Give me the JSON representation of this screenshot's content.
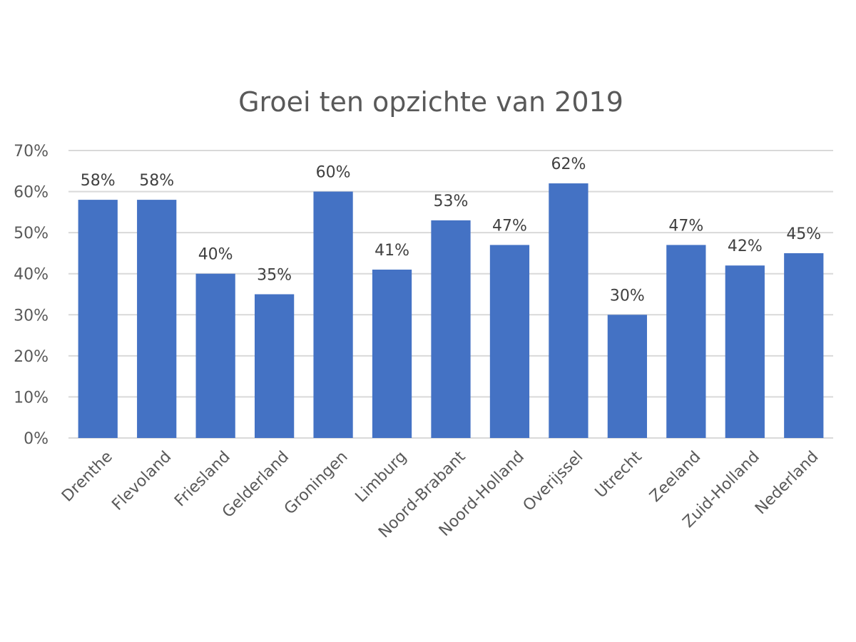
{
  "chart_data": {
    "type": "bar",
    "title": "Groei ten opzichte van 2019",
    "xlabel": "",
    "ylabel": "",
    "categories": [
      "Drenthe",
      "Flevoland",
      "Friesland",
      "Gelderland",
      "Groningen",
      "Limburg",
      "Noord-Brabant",
      "Noord-Holland",
      "Overijssel",
      "Utrecht",
      "Zeeland",
      "Zuid-Holland",
      "Nederland"
    ],
    "values": [
      58,
      58,
      40,
      35,
      60,
      41,
      53,
      47,
      62,
      30,
      47,
      42,
      45
    ],
    "data_labels": [
      "58%",
      "58%",
      "40%",
      "35%",
      "60%",
      "41%",
      "53%",
      "47%",
      "62%",
      "30%",
      "47%",
      "42%",
      "45%"
    ],
    "ylim": [
      0,
      70
    ],
    "y_ticks": [
      "0%",
      "10%",
      "20%",
      "30%",
      "40%",
      "50%",
      "60%",
      "70%"
    ],
    "grid": true,
    "legend": "none",
    "bar_color": "#4472c4"
  }
}
